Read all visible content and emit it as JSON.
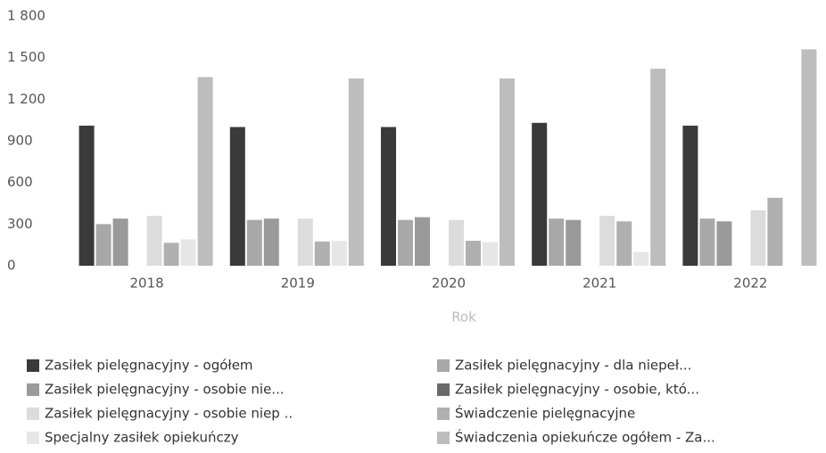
{
  "chart_data": {
    "type": "bar",
    "x_label": "Rok",
    "categories": [
      "2018",
      "2019",
      "2020",
      "2021",
      "2022"
    ],
    "ylim": [
      0,
      1800
    ],
    "yticks": [
      0,
      300,
      600,
      900,
      {
        "value": 1200,
        "label": "1 200"
      },
      {
        "value": 1500,
        "label": "1 500"
      },
      {
        "value": 1800,
        "label": "1 800"
      }
    ],
    "legend_position": "bottom",
    "series": [
      {
        "name": "Zasiłek pielęgnacyjny - ogółem",
        "color": "#3a3a3a",
        "values": [
          1010,
          1000,
          1000,
          1030,
          1010
        ]
      },
      {
        "name": "Zasiłek pielęgnacyjny - dla niepeł...",
        "color": "#a8a8a8",
        "values": [
          300,
          330,
          330,
          340,
          340
        ]
      },
      {
        "name": "Zasiłek pielęgnacyjny - osobie nie...",
        "color": "#9a9a9a",
        "values": [
          340,
          340,
          350,
          330,
          320
        ]
      },
      {
        "name": "Zasiłek pielęgnacyjny - osobie, któ...",
        "color": "#6a6a6a",
        "values": [
          0,
          0,
          0,
          0,
          0
        ]
      },
      {
        "name": "Zasiłek pielęgnacyjny -  osobie niep ..",
        "color": "#dcdcdc",
        "values": [
          360,
          340,
          330,
          360,
          400
        ]
      },
      {
        "name": "Świadczenie pielęgnacyjne",
        "color": "#b0b0b0",
        "values": [
          165,
          175,
          180,
          320,
          490
        ]
      },
      {
        "name": "Specjalny zasiłek opiekuńczy",
        "color": "#e6e6e6",
        "values": [
          190,
          180,
          170,
          100,
          0
        ]
      },
      {
        "name": "Świadczenia opiekuńcze ogółem - Za...",
        "color": "#bdbdbd",
        "values": [
          1360,
          1350,
          1350,
          1420,
          1560
        ]
      }
    ]
  }
}
